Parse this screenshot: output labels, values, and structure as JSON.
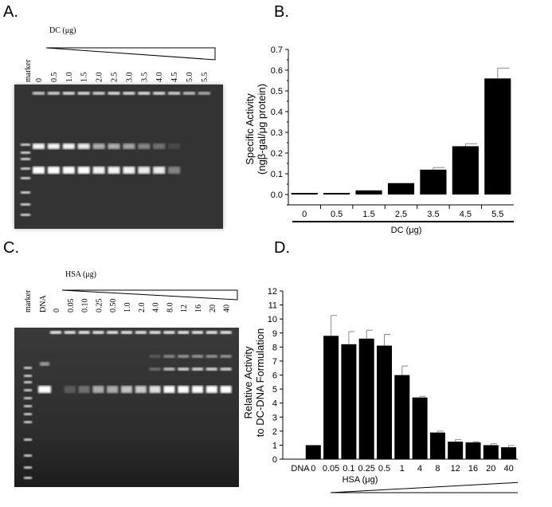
{
  "panels": {
    "a": {
      "label": "A.",
      "marker_label": "marker",
      "title": "DC (μg)",
      "lanes": [
        "0",
        "0.5",
        "1.0",
        "1.5",
        "2.0",
        "2.5",
        "3.0",
        "3.5",
        "4.0",
        "4.5",
        "5.0",
        "5.5"
      ]
    },
    "b": {
      "label": "B."
    },
    "c": {
      "label": "C.",
      "marker_label": "marker",
      "dna_label": "DNA",
      "title": "HSA (μg)",
      "lanes": [
        "0",
        "0.05",
        "0.10",
        "0.25",
        "0.50",
        "1.0",
        "2.0",
        "4.0",
        "8.0",
        "12",
        "16",
        "20",
        "40"
      ]
    },
    "d": {
      "label": "D."
    }
  },
  "chart_data": [
    {
      "panel": "B",
      "type": "bar",
      "categories": [
        "0",
        "0.5",
        "1.5",
        "2.5",
        "3.5",
        "4.5",
        "5.5"
      ],
      "values": [
        0.0,
        0.005,
        0.02,
        0.055,
        0.12,
        0.233,
        0.56
      ],
      "errors": [
        0.003,
        0.003,
        0.003,
        0.003,
        0.01,
        0.012,
        0.05
      ],
      "title": "",
      "xlabel": "DC (μg)",
      "ylabel_line1": "Specific Activity",
      "ylabel_line2": "(ngβ-gal/μg protein)",
      "ylim": [
        -0.05,
        0.7
      ],
      "yticks": [
        "0.0",
        "0.1",
        "0.2",
        "0.3",
        "0.4",
        "0.5",
        "0.6",
        "0.7"
      ],
      "grid": false
    },
    {
      "panel": "D",
      "type": "bar",
      "categories": [
        "DNA",
        "0",
        "0.05",
        "0.1",
        "0.25",
        "0.5",
        "1",
        "4",
        "8",
        "12",
        "16",
        "20",
        "40"
      ],
      "values": [
        0,
        1.0,
        8.8,
        8.2,
        8.6,
        8.1,
        6.0,
        4.4,
        1.9,
        1.25,
        1.2,
        1.0,
        0.85
      ],
      "errors": [
        0,
        0,
        1.45,
        0.9,
        0.6,
        0.8,
        0.65,
        0.08,
        0.1,
        0.15,
        0.05,
        0.1,
        0.12
      ],
      "title": "",
      "xlabel": "HSA (μg)",
      "ylabel_line1": "Relative Activity",
      "ylabel_line2": "to DC-DNA Formulation",
      "ylim": [
        0,
        12
      ],
      "yticks": [
        "0",
        "1",
        "2",
        "3",
        "4",
        "5",
        "6",
        "7",
        "8",
        "9",
        "10",
        "11",
        "12"
      ],
      "grid": false
    }
  ]
}
